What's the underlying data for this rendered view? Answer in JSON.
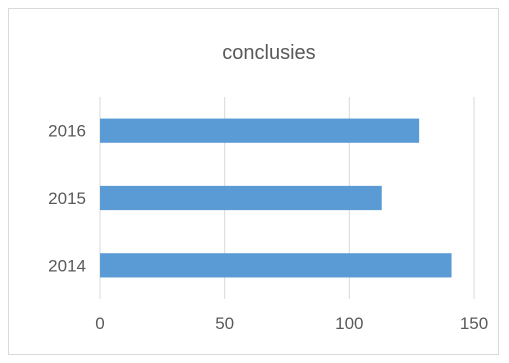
{
  "chart_data": {
    "type": "bar",
    "orientation": "horizontal",
    "title": "conclusies",
    "xlabel": "",
    "ylabel": "",
    "categories": [
      "2014",
      "2015",
      "2016"
    ],
    "values": [
      141,
      113,
      128
    ],
    "xlim": [
      0,
      150
    ],
    "xticks": [
      "0",
      "50",
      "100",
      "150"
    ],
    "grid": true,
    "legend": "none",
    "colors": {
      "bar": "#5b9bd5",
      "grid": "#d9d9d9",
      "text": "#595959",
      "border": "#d9d9d9"
    }
  }
}
